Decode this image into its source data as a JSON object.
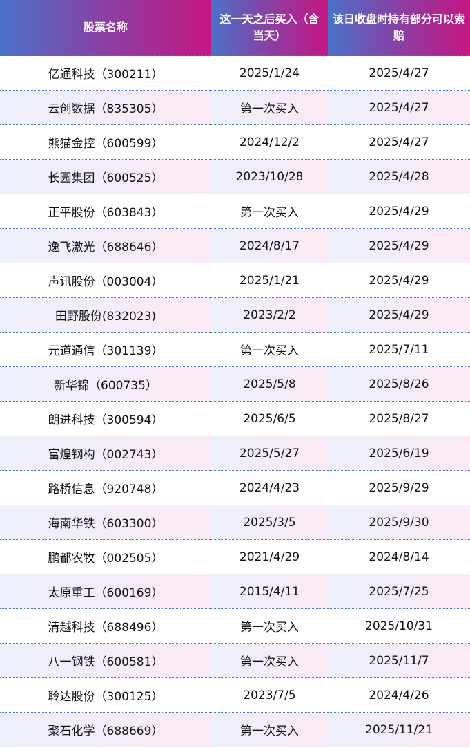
{
  "headers": [
    "股票名称",
    "这一天之后买入（含当天）",
    "该日收盘时持有部分可以索赔"
  ],
  "rows": [
    [
      "亿通科技（300211）",
      "2025/1/24",
      "2025/4/27"
    ],
    [
      "云创数据（835305）",
      "第一次买入",
      "2025/4/27"
    ],
    [
      "熊猫金控（600599）",
      "2024/12/2",
      "2025/4/27"
    ],
    [
      "长园集团（600525）",
      "2023/10/28",
      "2025/4/28"
    ],
    [
      "正平股份（603843）",
      "第一次买入",
      "2025/4/29"
    ],
    [
      "逸飞激光（688646）",
      "2024/8/17",
      "2025/4/29"
    ],
    [
      "声讯股份（003004）",
      "2025/1/21",
      "2025/4/29"
    ],
    [
      "田野股份(832023)",
      "2023/2/2",
      "2025/4/29"
    ],
    [
      "元道通信（301139）",
      "第一次买入",
      "2025/7/11"
    ],
    [
      "新华锦（600735）",
      "2025/5/8",
      "2025/8/26"
    ],
    [
      "朗进科技（300594）",
      "2025/6/5",
      "2025/8/27"
    ],
    [
      "富煌钢构（002743）",
      "2025/5/27",
      "2025/6/19"
    ],
    [
      "路桥信息（920748）",
      "2024/4/23",
      "2025/9/29"
    ],
    [
      "海南华铁（603300）",
      "2025/3/5",
      "2025/9/30"
    ],
    [
      "鹏都农牧（002505）",
      "2021/4/29",
      "2024/8/14"
    ],
    [
      "太原重工（600169）",
      "2015/4/11",
      "2025/7/25"
    ],
    [
      "清越科技（688496）",
      "第一次买入",
      "2025/10/31"
    ],
    [
      "八一钢铁（600581）",
      "第一次买入",
      "2025/11/7"
    ],
    [
      "聆达股份（300125）",
      "2023/7/5",
      "2024/4/26"
    ],
    [
      "聚石化学（688669）",
      "第一次买入",
      "2025/11/21"
    ]
  ]
}
